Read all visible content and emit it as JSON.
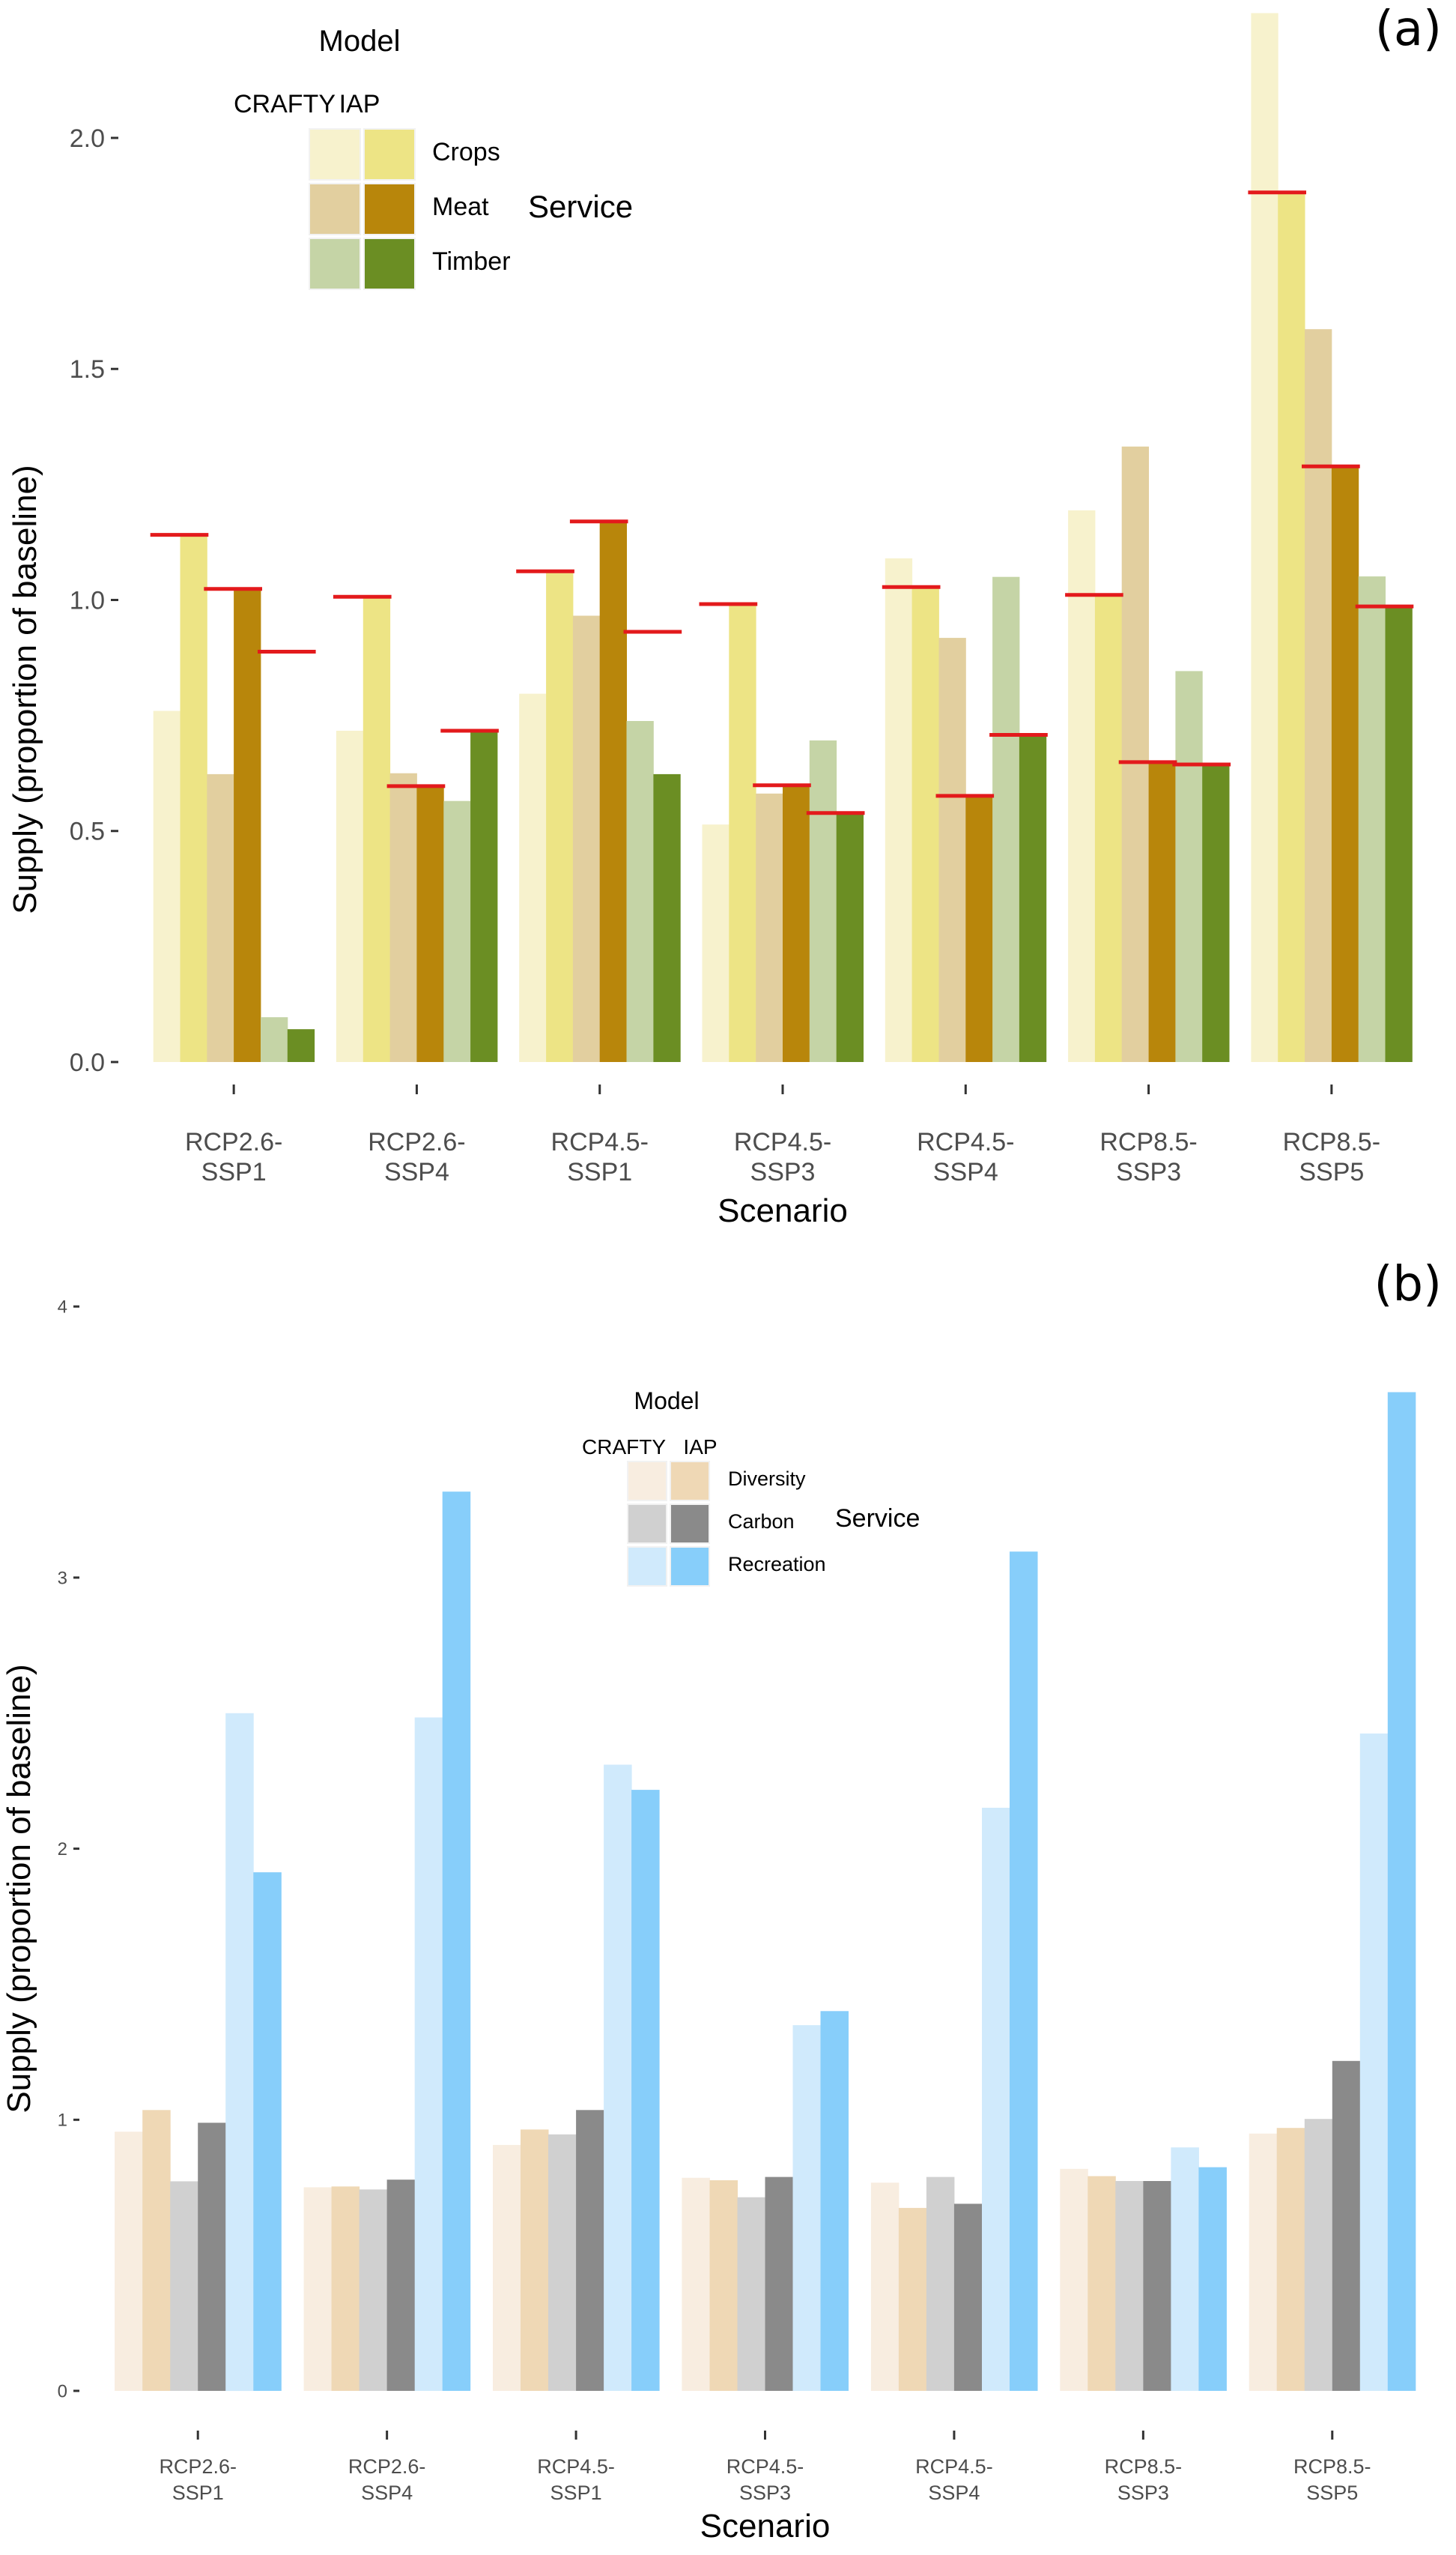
{
  "chart_data": [
    {
      "panel_label": "(a)",
      "type": "bar",
      "xlabel": "Scenario",
      "ylabel": "Supply (proportion of baseline)",
      "ylim": [
        0,
        2.27
      ],
      "yticks": [
        "0.0",
        "0.5",
        "1.0",
        "1.5",
        "2.0"
      ],
      "ytick_values": [
        0,
        0.5,
        1.0,
        1.5,
        2.0
      ],
      "grid": false,
      "categories": [
        [
          "RCP2.6-",
          "SSP1"
        ],
        [
          "RCP2.6-",
          "SSP4"
        ],
        [
          "RCP4.5-",
          "SSP1"
        ],
        [
          "RCP4.5-",
          "SSP3"
        ],
        [
          "RCP4.5-",
          "SSP4"
        ],
        [
          "RCP8.5-",
          "SSP3"
        ],
        [
          "RCP8.5-",
          "SSP5"
        ]
      ],
      "legend": {
        "position": "top-left",
        "model_title": "Model",
        "model_labels": [
          "CRAFTY",
          "IAP"
        ],
        "service_title": "Service",
        "services": [
          "Crops",
          "Meat",
          "Timber"
        ]
      },
      "series": [
        {
          "name": "Crops - CRAFTY",
          "color": "#f7f2cd",
          "values": [
            0.76,
            0.717,
            0.797,
            0.514,
            1.09,
            1.194,
            2.27
          ]
        },
        {
          "name": "Crops - IAP",
          "color": "#ede485",
          "values": [
            1.14,
            1.005,
            1.061,
            0.989,
            1.028,
            1.011,
            1.882
          ]
        },
        {
          "name": "Meat - CRAFTY",
          "color": "#e2cf9f",
          "values": [
            0.623,
            0.625,
            0.966,
            0.581,
            0.918,
            1.332,
            1.586
          ]
        },
        {
          "name": "Meat - IAP",
          "color": "#b8860b",
          "values": [
            1.021,
            0.596,
            1.169,
            0.599,
            0.576,
            0.649,
            1.289
          ]
        },
        {
          "name": "Timber - CRAFTY",
          "color": "#c5d4a6",
          "values": [
            0.097,
            0.565,
            0.738,
            0.696,
            1.05,
            0.846,
            1.051
          ]
        },
        {
          "name": "Timber - IAP",
          "color": "#6b8e23",
          "values": [
            0.071,
            0.715,
            0.623,
            0.539,
            0.708,
            0.644,
            0.986
          ]
        }
      ],
      "target_lines": {
        "color": "#e31a1c",
        "series": [
          {
            "name": "Crops target",
            "values": [
              1.141,
              1.007,
              1.062,
              0.991,
              1.028,
              1.011,
              1.882
            ]
          },
          {
            "name": "Meat target",
            "values": [
              1.024,
              0.597,
              1.17,
              0.599,
              0.576,
              0.649,
              1.289
            ]
          },
          {
            "name": "Timber target",
            "values": [
              0.888,
              0.717,
              0.931,
              0.539,
              0.708,
              0.644,
              0.986
            ]
          }
        ]
      }
    },
    {
      "panel_label": "(b)",
      "type": "bar",
      "xlabel": "Scenario",
      "ylabel": "Supply (proportion of baseline)",
      "ylim": [
        0,
        4
      ],
      "yticks": [
        "0",
        "1",
        "2",
        "3",
        "4"
      ],
      "ytick_values": [
        0,
        1,
        2,
        3,
        4
      ],
      "grid": false,
      "categories": [
        [
          "RCP2.6-",
          "SSP1"
        ],
        [
          "RCP2.6-",
          "SSP4"
        ],
        [
          "RCP4.5-",
          "SSP1"
        ],
        [
          "RCP4.5-",
          "SSP3"
        ],
        [
          "RCP4.5-",
          "SSP4"
        ],
        [
          "RCP8.5-",
          "SSP3"
        ],
        [
          "RCP8.5-",
          "SSP5"
        ]
      ],
      "legend": {
        "position": "top-center",
        "model_title": "Model",
        "model_labels": [
          "CRAFTY",
          "IAP"
        ],
        "service_title": "Service",
        "services": [
          "Diversity",
          "Carbon",
          "Recreation"
        ]
      },
      "series": [
        {
          "name": "Diversity - CRAFTY",
          "color": "#f8ede0",
          "values": [
            0.956,
            0.751,
            0.907,
            0.786,
            0.768,
            0.819,
            0.949
          ]
        },
        {
          "name": "Diversity - IAP",
          "color": "#efd8b5",
          "values": [
            1.036,
            0.754,
            0.964,
            0.777,
            0.675,
            0.792,
            0.97
          ]
        },
        {
          "name": "Carbon - CRAFTY",
          "color": "#d0d0d0",
          "values": [
            0.773,
            0.743,
            0.946,
            0.714,
            0.789,
            0.774,
            1.003
          ]
        },
        {
          "name": "Carbon - IAP",
          "color": "#8a8a8a",
          "values": [
            0.989,
            0.779,
            1.036,
            0.789,
            0.69,
            0.774,
            1.217
          ]
        },
        {
          "name": "Recreation - CRAFTY",
          "color": "#d0eafc",
          "values": [
            2.5,
            2.484,
            2.31,
            1.349,
            2.151,
            0.898,
            2.425
          ]
        },
        {
          "name": "Recreation - IAP",
          "color": "#87cefa",
          "values": [
            1.913,
            3.317,
            2.217,
            1.401,
            3.096,
            0.825,
            3.684
          ]
        }
      ]
    }
  ]
}
